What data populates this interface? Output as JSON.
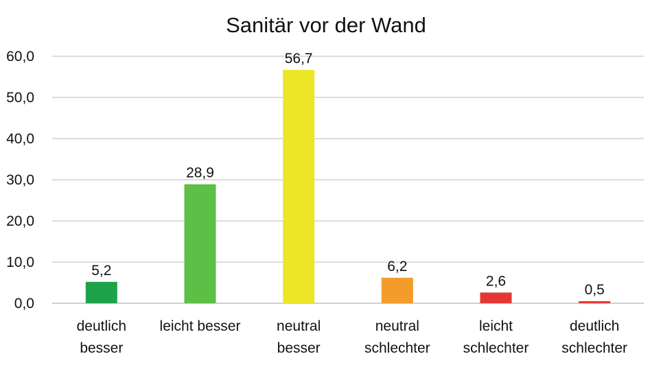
{
  "chart_data": {
    "type": "bar",
    "title": "Sanitär vor der Wand",
    "xlabel": "",
    "ylabel": "",
    "ylim": [
      0,
      60
    ],
    "yticks": [
      "0,0",
      "10,0",
      "20,0",
      "30,0",
      "40,0",
      "50,0",
      "60,0"
    ],
    "grid": true,
    "legend": "none",
    "categories": [
      [
        "deutlich",
        "besser"
      ],
      [
        "leicht besser"
      ],
      [
        "neutral",
        "besser"
      ],
      [
        "neutral",
        "schlechter"
      ],
      [
        "leicht",
        "schlechter"
      ],
      [
        "deutlich",
        "schlechter"
      ]
    ],
    "values": [
      5.2,
      28.9,
      56.7,
      6.2,
      2.6,
      0.5
    ],
    "value_labels": [
      "5,2",
      "28,9",
      "56,7",
      "6,2",
      "2,6",
      "0,5"
    ],
    "colors": [
      "#1ea34b",
      "#5cbf46",
      "#ede627",
      "#f39b2b",
      "#e63631",
      "#e63631"
    ]
  }
}
